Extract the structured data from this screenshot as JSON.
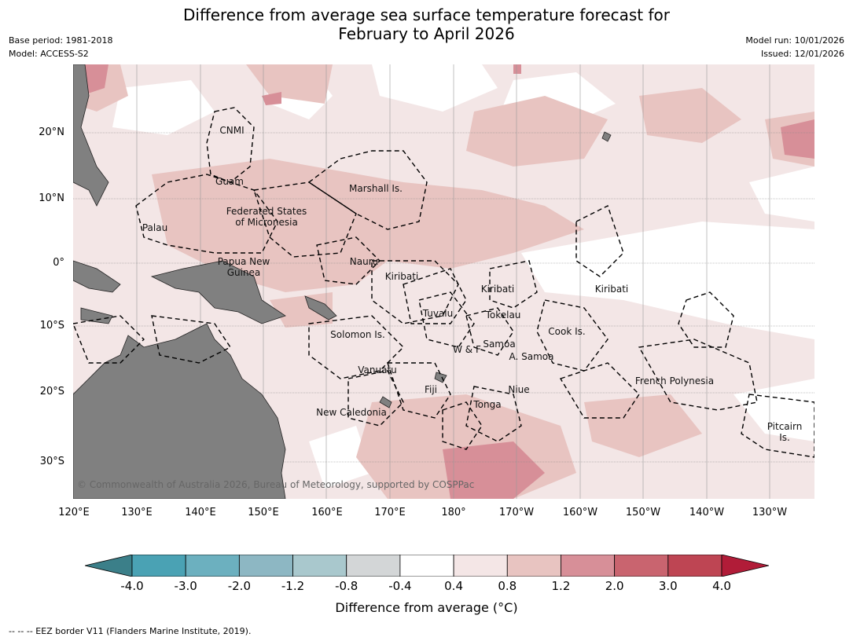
{
  "title_line1": "Difference from average sea surface temperature forecast for",
  "title_line2": "February to April 2026",
  "meta_left": [
    "Base period: 1981-2018",
    "Model: ACCESS-S2"
  ],
  "meta_right": [
    "Model run: 10/01/2026",
    "Issued: 12/01/2026"
  ],
  "lat_labels": [
    "20°N",
    "10°N",
    "0°",
    "10°S",
    "20°S",
    "30°S"
  ],
  "lon_labels": [
    "120°E",
    "130°E",
    "140°E",
    "150°E",
    "160°E",
    "170°E",
    "180°",
    "170°W",
    "160°W",
    "150°W",
    "140°W",
    "130°W"
  ],
  "regions": {
    "cnmi": "CNMI",
    "guam": "Guam",
    "marshall": "Marshall Is.",
    "fsm1": "Federated States",
    "fsm2": "of Micronesia",
    "palau": "Palau",
    "png1": "Papua New",
    "png2": "Guinea",
    "nauru": "Nauru",
    "kiribati_w": "Kiribati",
    "kiribati_c": "Kiribati",
    "kiribati_e": "Kiribati",
    "tuvalu": "Tuvalu",
    "tokelau": "Tokelau",
    "cook": "Cook Is.",
    "solomon": "Solomon Is.",
    "samoa": "Samoa",
    "wf": "W & F",
    "asamoa": "A. Samoa",
    "vanuatu": "Vanuatu",
    "fiji": "Fiji",
    "niue": "Niue",
    "tonga": "Tonga",
    "newcal": "New Caledonia",
    "frpoly": "French Polynesia",
    "pitcairn1": "Pitcairn",
    "pitcairn2": "Is."
  },
  "copyright": "© Commonwealth of Australia 2026, Bureau of Meteorology, supported by COSPPac",
  "colorbar": {
    "ticks": [
      "-4.0",
      "-3.0",
      "-2.0",
      "-1.2",
      "-0.8",
      "-0.4",
      "0.4",
      "0.8",
      "1.2",
      "2.0",
      "3.0",
      "4.0"
    ],
    "colors": [
      "#3b7f89",
      "#4aa2b4",
      "#6cb0bf",
      "#8db7c3",
      "#a9c8cd",
      "#d3d6d7",
      "#ffffff",
      "#f4e6e6",
      "#e8c4c1",
      "#d78f98",
      "#c9646f",
      "#be4553",
      "#b11c38"
    ],
    "label": "Difference from average ($^\\circ$C)",
    "label_display": "Difference from average (°C)"
  },
  "footer": "--  --  -- EEZ border V11 (Flanders Marine Institute, 2019)."
}
